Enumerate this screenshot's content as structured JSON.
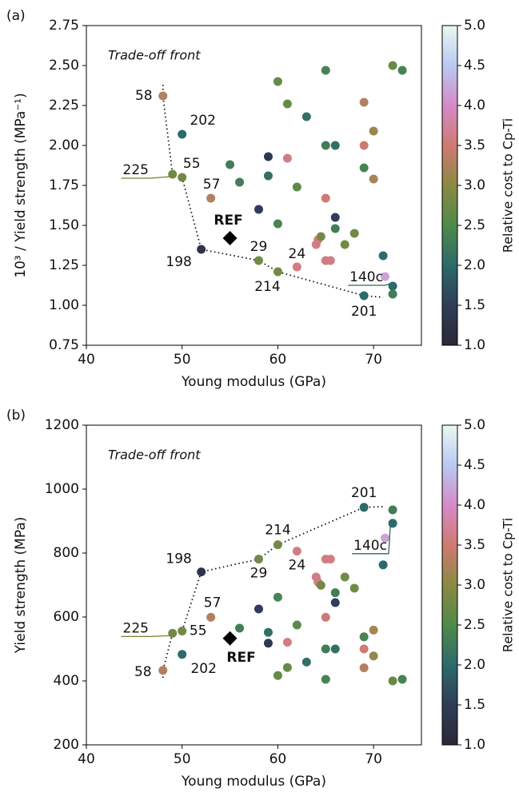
{
  "chart_data": [
    {
      "type": "scatter",
      "panel_label": "(a)",
      "subtitle": "Trade-off front",
      "x_label": "Young modulus (GPa)",
      "y_label": "10³ / Yield strength (MPa⁻¹)",
      "colorbar_label": "Relative cost to Cp-Ti",
      "xlim": [
        40,
        75
      ],
      "xticks": [
        40,
        50,
        60,
        70
      ],
      "ylim": [
        0.75,
        2.75
      ],
      "yticks": [
        0.75,
        {
          "value": 1,
          "label": "1.00"
        },
        1.25,
        {
          "value": 1.5,
          "label": "1.50"
        },
        1.75,
        {
          "value": 2,
          "label": "2.00"
        },
        2.25,
        {
          "value": 2.5,
          "label": "2.50"
        },
        2.75
      ],
      "clim": [
        1,
        5
      ],
      "cticks": [
        {
          "value": 1,
          "label": "1.0"
        },
        1.5,
        {
          "value": 2,
          "label": "2.0"
        },
        2.5,
        {
          "value": 3,
          "label": "3.0"
        },
        3.5,
        {
          "value": 4,
          "label": "4.0"
        },
        4.5,
        {
          "value": 5,
          "label": "5.0"
        }
      ],
      "colormap": [
        "#2b2836",
        "#2f3d58",
        "#2c6a6b",
        "#4f8a4a",
        "#8a8a42",
        "#cf7a72",
        "#d58bc8",
        "#b9c9f1",
        "#eaf8f1"
      ],
      "points": {
        "x": [
          48,
          50,
          49,
          50,
          53,
          52,
          58,
          60,
          69,
          62,
          55,
          56,
          58,
          59,
          59,
          60,
          60,
          61,
          61,
          62,
          63,
          64,
          64.2,
          64.5,
          65,
          65,
          65,
          65,
          65.5,
          66,
          66,
          66,
          67,
          68,
          69,
          69,
          69,
          70,
          70,
          71,
          71.2,
          72,
          72,
          72,
          73
        ],
        "y": [
          2.31,
          2.07,
          1.82,
          1.8,
          1.67,
          1.35,
          1.28,
          1.21,
          1.06,
          1.24,
          1.88,
          1.77,
          1.6,
          1.93,
          1.81,
          2.4,
          1.51,
          2.26,
          1.92,
          1.74,
          2.18,
          1.38,
          1.41,
          1.43,
          2.47,
          2.0,
          1.67,
          1.28,
          1.28,
          2.0,
          1.55,
          1.48,
          1.38,
          1.45,
          2.27,
          2.0,
          1.86,
          2.09,
          1.79,
          1.31,
          1.18,
          1.12,
          2.5,
          1.07,
          2.47
        ],
        "cost": [
          3.3,
          2.0,
          2.8,
          2.8,
          3.3,
          1.3,
          2.8,
          2.8,
          2.0,
          3.6,
          2.3,
          2.3,
          1.5,
          1.4,
          2.1,
          2.7,
          2.4,
          2.7,
          3.6,
          2.6,
          2.1,
          3.6,
          3.6,
          2.8,
          2.4,
          2.3,
          3.5,
          3.6,
          3.6,
          2.1,
          1.5,
          2.3,
          2.8,
          2.8,
          3.3,
          3.5,
          2.4,
          3.1,
          3.2,
          2.0,
          4.2,
          2.0,
          2.7,
          2.3,
          2.4
        ]
      },
      "front": {
        "x": [
          48,
          48,
          49,
          50,
          52,
          58,
          60,
          69,
          71
        ],
        "y": [
          2.38,
          2.31,
          1.82,
          1.8,
          1.35,
          1.28,
          1.21,
          1.06,
          1.05
        ]
      },
      "reference": {
        "x": 55,
        "y": 1.42,
        "color": "#000000"
      },
      "annotations": [
        {
          "text": "58",
          "x": 48,
          "y": 2.31,
          "color": "#c96d6d"
        },
        {
          "text": "202",
          "x": 50,
          "y": 2.07,
          "color": "#2c5a63"
        },
        {
          "text": "225",
          "x": 49,
          "y": 1.82,
          "color": "#7a7d30"
        },
        {
          "text": "55",
          "x": 50,
          "y": 1.8,
          "color": "#7a7d30"
        },
        {
          "text": "57",
          "x": 53,
          "y": 1.67,
          "color": "#c96d6d"
        },
        {
          "text": "REF",
          "x": 55,
          "y": 1.42,
          "color": "#000000"
        },
        {
          "text": "198",
          "x": 52,
          "y": 1.35,
          "color": "#2b2b45"
        },
        {
          "text": "29",
          "x": 58,
          "y": 1.28,
          "color": "#7a7d30"
        },
        {
          "text": "214",
          "x": 60,
          "y": 1.21,
          "color": "#7a7d30"
        },
        {
          "text": "24",
          "x": 62,
          "y": 1.24,
          "color": "#d47aa8"
        },
        {
          "text": "140c",
          "x": 72,
          "y": 1.12,
          "color": "#2c6a52"
        },
        {
          "text": "201",
          "x": 69,
          "y": 1.06,
          "color": "#2c5a63"
        }
      ]
    },
    {
      "type": "scatter",
      "panel_label": "(b)",
      "subtitle": "Trade-off front",
      "x_label": "Young modulus (GPa)",
      "y_label": "Yield strength (MPa)",
      "colorbar_label": "Relative cost to Cp-Ti",
      "xlim": [
        40,
        75
      ],
      "xticks": [
        40,
        50,
        60,
        70
      ],
      "ylim": [
        200,
        1200
      ],
      "yticks": [
        200,
        400,
        600,
        800,
        1000,
        1200
      ],
      "clim": [
        1,
        5
      ],
      "cticks": [
        {
          "value": 1,
          "label": "1.0"
        },
        1.5,
        {
          "value": 2,
          "label": "2.0"
        },
        2.5,
        {
          "value": 3,
          "label": "3.0"
        },
        3.5,
        {
          "value": 4,
          "label": "4.0"
        },
        4.5,
        {
          "value": 5,
          "label": "5.0"
        }
      ],
      "colormap": [
        "#2b2836",
        "#2f3d58",
        "#2c6a6b",
        "#4f8a4a",
        "#8a8a42",
        "#cf7a72",
        "#d58bc8",
        "#b9c9f1",
        "#eaf8f1"
      ],
      "points": {
        "x": [
          48,
          50,
          49,
          50,
          53,
          52,
          58,
          60,
          69,
          62,
          55,
          56,
          58,
          59,
          59,
          60,
          60,
          61,
          61,
          62,
          63,
          64,
          64.2,
          64.5,
          65,
          65,
          65,
          65,
          65.5,
          66,
          66,
          66,
          67,
          68,
          69,
          69,
          69,
          70,
          70,
          71,
          71.2,
          72,
          72,
          72,
          73
        ],
        "y": [
          433,
          483,
          549,
          556,
          599,
          741,
          781,
          826,
          943,
          806,
          532,
          565,
          625,
          518,
          552,
          417,
          662,
          442,
          521,
          575,
          459,
          725,
          709,
          699,
          405,
          500,
          599,
          781,
          781,
          500,
          645,
          676,
          725,
          690,
          441,
          500,
          538,
          478,
          559,
          763,
          847,
          893,
          400,
          935,
          405
        ],
        "cost": [
          3.3,
          2.0,
          2.8,
          2.8,
          3.3,
          1.3,
          2.8,
          2.8,
          2.0,
          3.6,
          2.3,
          2.3,
          1.5,
          1.4,
          2.1,
          2.7,
          2.4,
          2.7,
          3.6,
          2.6,
          2.1,
          3.6,
          3.6,
          2.8,
          2.4,
          2.3,
          3.5,
          3.6,
          3.6,
          2.1,
          1.5,
          2.3,
          2.8,
          2.8,
          3.3,
          3.5,
          2.4,
          3.1,
          3.2,
          2.0,
          4.2,
          2.0,
          2.7,
          2.3,
          2.4
        ]
      },
      "front": {
        "x": [
          48,
          48,
          49,
          50,
          52,
          58,
          60,
          69,
          71
        ],
        "y": [
          410,
          433,
          549,
          556,
          741,
          781,
          826,
          943,
          945
        ]
      },
      "reference": {
        "x": 55,
        "y": 533,
        "color": "#000000"
      },
      "annotations": [
        {
          "text": "58",
          "x": 48,
          "y": 433,
          "color": "#c96d6d"
        },
        {
          "text": "202",
          "x": 50,
          "y": 483,
          "color": "#2c5a63"
        },
        {
          "text": "225",
          "x": 49,
          "y": 549,
          "color": "#7a7d30"
        },
        {
          "text": "55",
          "x": 50,
          "y": 556,
          "color": "#7a7d30"
        },
        {
          "text": "57",
          "x": 53,
          "y": 599,
          "color": "#c96d6d"
        },
        {
          "text": "REF",
          "x": 55,
          "y": 533,
          "color": "#000000"
        },
        {
          "text": "198",
          "x": 52,
          "y": 741,
          "color": "#2b2b45"
        },
        {
          "text": "29",
          "x": 58,
          "y": 781,
          "color": "#7a7d30"
        },
        {
          "text": "214",
          "x": 60,
          "y": 826,
          "color": "#7a7d30"
        },
        {
          "text": "24",
          "x": 62,
          "y": 806,
          "color": "#d47aa8"
        },
        {
          "text": "140c",
          "x": 72,
          "y": 893,
          "color": "#2c6a52"
        },
        {
          "text": "201",
          "x": 69,
          "y": 943,
          "color": "#2c5a63"
        }
      ]
    }
  ]
}
